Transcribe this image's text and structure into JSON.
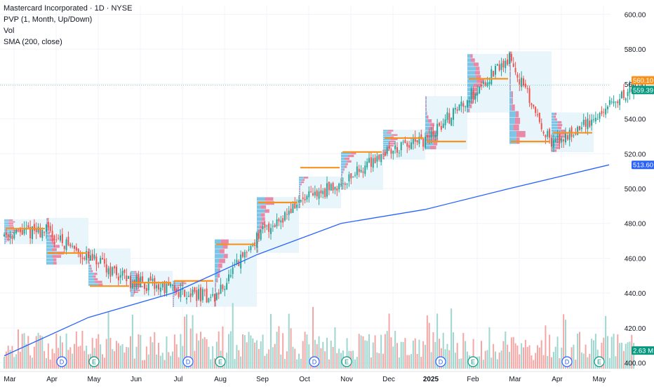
{
  "header": {
    "title": "Mastercard Incorporated · 1D · NYSE",
    "indicators": [
      "PVP (1, Month, Up/Down)",
      "Vol",
      "SMA (200, close)"
    ]
  },
  "colors": {
    "up": "#26a69a",
    "down": "#ef5350",
    "up_volume": "#9fd6cf",
    "down_volume": "#f4a7a5",
    "sma": "#2962ff",
    "poc": "#f7921e",
    "profile_bg": "#e8f6fb",
    "grid": "#f0f3fa",
    "axis_text": "#131722"
  },
  "chart_data": {
    "type": "candlestick",
    "symbol": "Mastercard Incorporated",
    "interval": "1D",
    "exchange": "NYSE",
    "x_ticks": [
      "Mar",
      "Apr",
      "May",
      "Jun",
      "Jul",
      "Aug",
      "Sep",
      "Oct",
      "Nov",
      "Dec",
      "2025",
      "Feb",
      "Mar",
      "Apr",
      "May"
    ],
    "y_ticks": [
      400,
      420,
      440,
      460,
      480,
      500,
      520,
      540,
      560,
      580,
      600
    ],
    "ylim": [
      395,
      605
    ],
    "grid": true,
    "monthly_closes": [
      {
        "month": "Mar",
        "close": 476
      },
      {
        "month": "Apr",
        "close": 460
      },
      {
        "month": "May",
        "close": 447
      },
      {
        "month": "Jun",
        "close": 442
      },
      {
        "month": "Jul",
        "close": 437
      },
      {
        "month": "Aug",
        "close": 472
      },
      {
        "month": "Sep",
        "close": 492
      },
      {
        "month": "Oct",
        "close": 503
      },
      {
        "month": "Nov",
        "close": 521
      },
      {
        "month": "Dec",
        "close": 527
      },
      {
        "month": "Jan",
        "close": 552
      },
      {
        "month": "Feb",
        "close": 575
      },
      {
        "month": "Mar",
        "close": 525
      },
      {
        "month": "Apr",
        "close": 540
      },
      {
        "month": "May",
        "close": 559
      }
    ],
    "poc_levels": [
      {
        "month": "Mar",
        "price": 477
      },
      {
        "month": "Apr",
        "price": 463
      },
      {
        "month": "May",
        "price": 444
      },
      {
        "month": "Jun",
        "price": 446
      },
      {
        "month": "Jul",
        "price": 447
      },
      {
        "month": "Aug",
        "price": 468
      },
      {
        "month": "Sep",
        "price": 492
      },
      {
        "month": "Oct",
        "price": 512
      },
      {
        "month": "Nov",
        "price": 521
      },
      {
        "month": "Dec",
        "price": 529
      },
      {
        "month": "Jan",
        "price": 527
      },
      {
        "month": "Feb",
        "price": 563
      },
      {
        "month": "Mar",
        "price": 527
      },
      {
        "month": "Apr",
        "price": 532
      }
    ],
    "sma_200": [
      {
        "month": "Mar",
        "value": 404
      },
      {
        "month": "May",
        "value": 426
      },
      {
        "month": "Jul",
        "value": 440
      },
      {
        "month": "Sep",
        "value": 462
      },
      {
        "month": "Nov",
        "value": 480
      },
      {
        "month": "Jan",
        "value": 488
      },
      {
        "month": "Mar",
        "value": 500
      },
      {
        "month": "May",
        "value": 513.6
      }
    ],
    "earnings_markers": [
      "Apr",
      "Jul",
      "Oct",
      "Jan",
      "Apr"
    ],
    "dividend_markers": [
      "Apr",
      "Jul",
      "Oct",
      "Jan",
      "Apr"
    ],
    "price_labels": [
      {
        "value": "560.10",
        "color": "#f7921e"
      },
      {
        "value": "559.39",
        "color": "#089981"
      },
      {
        "value": "513.60",
        "color": "#2962ff"
      },
      {
        "value": "2.63 M",
        "color": "#089981"
      }
    ]
  }
}
